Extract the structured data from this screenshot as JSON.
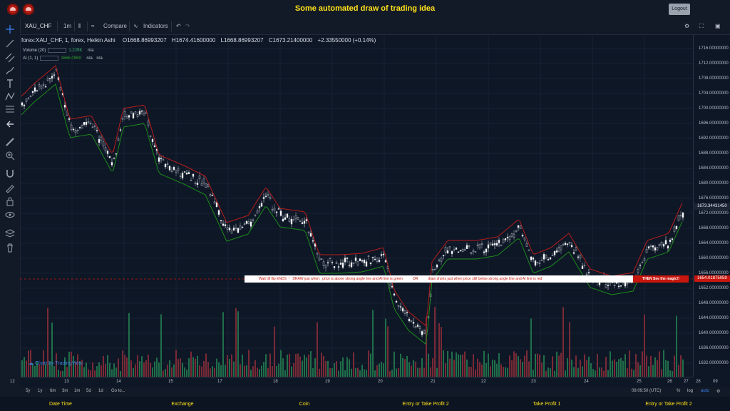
{
  "app": {
    "title": "Some automated draw of trading idea",
    "logout_label": "Logout"
  },
  "toolbar": {
    "symbol": "XAU_CHF",
    "interval": "1m",
    "compare_label": "Compare",
    "indicators_label": "Indicators"
  },
  "legend": {
    "title": "forex:XAU_CHF, 1, forex, Heikin Ashi",
    "open": "O1668.86993207",
    "high": "H1674.41600000",
    "low": "L1668.86993207",
    "close": "C1673.21400000",
    "change": "+2.33550000 (+0.14%)",
    "volume_label": "Volume (20)",
    "volume_value": "1.229K",
    "volume_na": "n/a",
    "ai_label": "AI (1, 1)",
    "ai_value": "1666.0969",
    "ai_na1": "n/a",
    "ai_na2": "n/a"
  },
  "price_axis": {
    "ticks": [
      "1716.00000000",
      "1712.00000000",
      "1708.00000000",
      "1704.00000000",
      "1700.00000000",
      "1696.00000000",
      "1692.00000000",
      "1688.00000000",
      "1684.00000000",
      "1680.00000000",
      "1676.00000000",
      "1672.00000000",
      "1668.00000000",
      "1664.00000000",
      "1660.00000000",
      "1656.00000000",
      "1652.00000000",
      "1648.00000000",
      "1644.00000000",
      "1640.00000000",
      "1636.00000000",
      "1632.00000000"
    ],
    "current_price": "1673.34431450",
    "line_price": "1654.01875059"
  },
  "time_axis": {
    "ticks": [
      "12",
      "13",
      "14",
      "15",
      "17",
      "18",
      "19",
      "20",
      "21",
      "22",
      "23",
      "24",
      "25",
      "26",
      "27",
      "28",
      "09"
    ]
  },
  "banner": {
    "text": "Wait till flip ENDS  !   DRAW just when:  price is above strong angle line and AI line is green          OR          draw shorts just when price still below strong angle line and AI line is red",
    "cta": "THEN See the magic!!"
  },
  "watermark": "Chart by TradingView",
  "bottom_bar": {
    "ranges": [
      "5y",
      "1y",
      "6m",
      "3m",
      "1m",
      "5d",
      "1d"
    ],
    "goto": "Go to...",
    "clock": "08:09:50 (UTC)",
    "percent": "%",
    "log": "log",
    "auto": "auto"
  },
  "footer": {
    "columns": [
      "Date Time",
      "Exchange",
      "Coin",
      "Entry or Take Profit 2",
      "Take Profit 1",
      "Entry or Take Profit 2"
    ]
  },
  "colors": {
    "background": "#0e1726",
    "bull": "#26a69a",
    "bear": "#ef5350",
    "ai_line_up": "#1b8a1b",
    "ai_line_down": "#b71c1c",
    "title": "#ffe21a",
    "banner_red": "#c8170e"
  }
}
